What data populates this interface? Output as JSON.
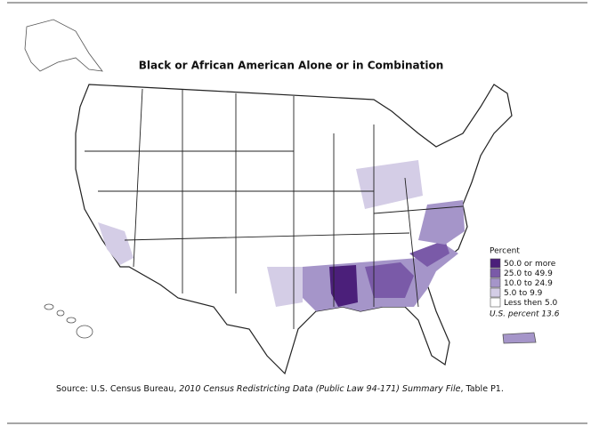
{
  "title": "Black or African American Alone or in Combination",
  "legend": {
    "title": "Percent",
    "items": [
      {
        "label": "50.0 or more",
        "color": "#4b1f7a"
      },
      {
        "label": "25.0 to 49.9",
        "color": "#7a5aa8"
      },
      {
        "label": "10.0 to 24.9",
        "color": "#a595c9"
      },
      {
        "label": "5.0 to 9.9",
        "color": "#d4cde6"
      },
      {
        "label": "Less then 5.0",
        "color": "#ffffff"
      }
    ]
  },
  "us_percent": "U.S. percent 13.6",
  "source": {
    "prefix": "Source: U.S. Census Bureau, ",
    "italic": "2010 Census Redistricting Data (Public Law 94-171) Summary File",
    "suffix": ", Table P1."
  }
}
